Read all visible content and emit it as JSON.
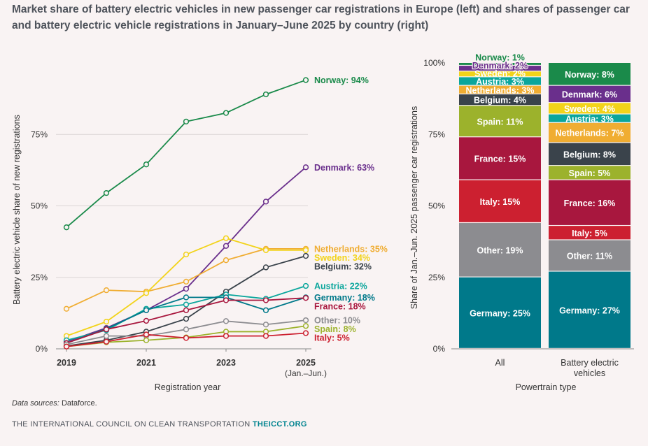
{
  "header": {
    "title": "Market share of battery electric vehicles in new passenger car registrations in Europe (left) and shares of passenger car and battery electric vehicle registrations in January–June 2025 by country (right)"
  },
  "footer": {
    "source_label": "Data sources:",
    "source_value": "Dataforce.",
    "org_name": "THE INTERNATIONAL COUNCIL ON CLEAN TRANSPORTATION",
    "org_site": "THEICCT.ORG"
  },
  "chart_data": [
    {
      "type": "line",
      "ylabel": "Battery electric vehicle share of new registrations",
      "xlabel": "Registration year",
      "x": [
        2019,
        2020,
        2021,
        2022,
        2023,
        2024,
        2025
      ],
      "xticks": [
        "2019",
        "2021",
        "2023",
        "2025"
      ],
      "xtick_note": "(Jan.–Jun.)",
      "yticks": [
        "0%",
        "25%",
        "50%",
        "75%"
      ],
      "ylim": [
        0,
        100
      ],
      "series": [
        {
          "name": "Norway",
          "label": "Norway: 94%",
          "color": "#1a8a4a",
          "values": [
            42.5,
            54.5,
            64.5,
            79.5,
            82.5,
            89,
            94
          ]
        },
        {
          "name": "Denmark",
          "label": "Denmark: 63%",
          "color": "#6a2f8c",
          "values": [
            2.5,
            7.3,
            13.5,
            21,
            36,
            51.5,
            63.5
          ]
        },
        {
          "name": "Netherlands",
          "label": "Netherlands: 35%",
          "color": "#f0ad32",
          "values": [
            14,
            20.5,
            20,
            23.5,
            31,
            35,
            35
          ]
        },
        {
          "name": "Sweden",
          "label": "Sweden: 34%",
          "color": "#f2d31a",
          "values": [
            4.5,
            9.5,
            19.5,
            33,
            38.7,
            34.5,
            34.5
          ]
        },
        {
          "name": "Belgium",
          "label": "Belgium: 32%",
          "color": "#3a434b",
          "values": [
            1,
            3,
            6,
            10.5,
            20,
            28.5,
            32.5
          ]
        },
        {
          "name": "Austria",
          "label": "Austria: 22%",
          "color": "#0aa69c",
          "values": [
            3,
            6.5,
            14,
            15.5,
            19,
            17.5,
            22
          ]
        },
        {
          "name": "Germany",
          "label": "Germany: 18%",
          "color": "#00798a",
          "values": [
            2,
            7,
            13.5,
            18,
            18,
            13.5,
            18
          ]
        },
        {
          "name": "France",
          "label": "France: 18%",
          "color": "#a8173e",
          "values": [
            2,
            6.8,
            9.8,
            13.5,
            17,
            17,
            17.8
          ]
        },
        {
          "name": "Other",
          "label": "Other: 10%",
          "color": "#8c8c90",
          "values": [
            1.5,
            4.5,
            4.5,
            6.8,
            9.7,
            8.5,
            10
          ]
        },
        {
          "name": "Spain",
          "label": "Spain: 8%",
          "color": "#9cb22c",
          "values": [
            0.8,
            2.3,
            3,
            4,
            6,
            6,
            8
          ]
        },
        {
          "name": "Italy",
          "label": "Italy: 5%",
          "color": "#cc2030",
          "values": [
            0.8,
            2.5,
            5,
            3.8,
            4.5,
            4.5,
            5.5
          ]
        }
      ]
    },
    {
      "type": "bar",
      "stacked": true,
      "ylabel": "Share of Jan.–Jun. 2025 passenger car registrations",
      "xlabel": "Powertrain type",
      "categories": [
        "All",
        "Battery electric vehicles"
      ],
      "category_lines": [
        [
          "All"
        ],
        [
          "Battery electric",
          "vehicles"
        ]
      ],
      "yticks": [
        "0%",
        "25%",
        "50%",
        "75%",
        "100%"
      ],
      "ylim": [
        0,
        100
      ],
      "series": [
        {
          "name": "Germany",
          "color": "#00798a",
          "values": [
            25,
            27
          ],
          "labels": [
            "Germany: 25%",
            "Germany: 27%"
          ]
        },
        {
          "name": "Other",
          "color": "#8c8c90",
          "values": [
            19,
            11
          ],
          "labels": [
            "Other: 19%",
            "Other: 11%"
          ]
        },
        {
          "name": "Italy",
          "color": "#cc2030",
          "values": [
            15,
            5
          ],
          "labels": [
            "Italy: 15%",
            "Italy: 5%"
          ]
        },
        {
          "name": "France",
          "color": "#a8173e",
          "values": [
            15,
            16
          ],
          "labels": [
            "France: 15%",
            "France: 16%"
          ]
        },
        {
          "name": "Spain",
          "color": "#9cb22c",
          "values": [
            11,
            5
          ],
          "labels": [
            "Spain: 11%",
            "Spain: 5%"
          ]
        },
        {
          "name": "Belgium",
          "color": "#3a434b",
          "values": [
            4,
            8
          ],
          "labels": [
            "Belgium: 4%",
            "Belgium: 8%"
          ]
        },
        {
          "name": "Netherlands",
          "color": "#f0ad32",
          "values": [
            3,
            7
          ],
          "labels": [
            "Netherlands: 3%",
            "Netherlands: 7%"
          ]
        },
        {
          "name": "Austria",
          "color": "#0aa69c",
          "values": [
            3,
            3
          ],
          "labels": [
            "Austria: 3%",
            "Austria: 3%"
          ]
        },
        {
          "name": "Sweden",
          "color": "#f2d31a",
          "values": [
            2,
            4
          ],
          "labels": [
            "Sweden: 2%",
            "Sweden: 4%"
          ]
        },
        {
          "name": "Denmark",
          "color": "#6a2f8c",
          "values": [
            2,
            6
          ],
          "labels": [
            "Denmark: 2%",
            "Denmark: 6%"
          ]
        },
        {
          "name": "Norway",
          "color": "#1a8a4a",
          "values": [
            1,
            8
          ],
          "labels": [
            "Norway: 1%",
            "Norway: 8%"
          ]
        }
      ]
    }
  ]
}
